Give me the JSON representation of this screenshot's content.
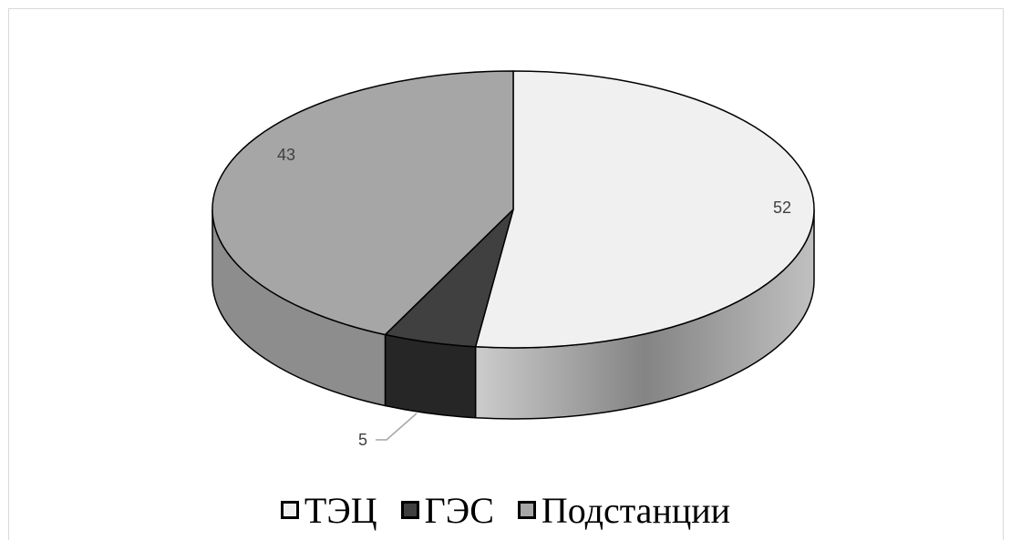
{
  "chart_data": {
    "type": "pie",
    "three_d": true,
    "categories": [
      "ТЭЦ",
      "ГЭС",
      "Подстанции"
    ],
    "values": [
      52,
      5,
      43
    ],
    "data_labels": [
      "52",
      "5",
      "43"
    ],
    "legend_position": "bottom",
    "colors": [
      "#f0f0f0",
      "#404040",
      "#a6a6a6"
    ]
  }
}
